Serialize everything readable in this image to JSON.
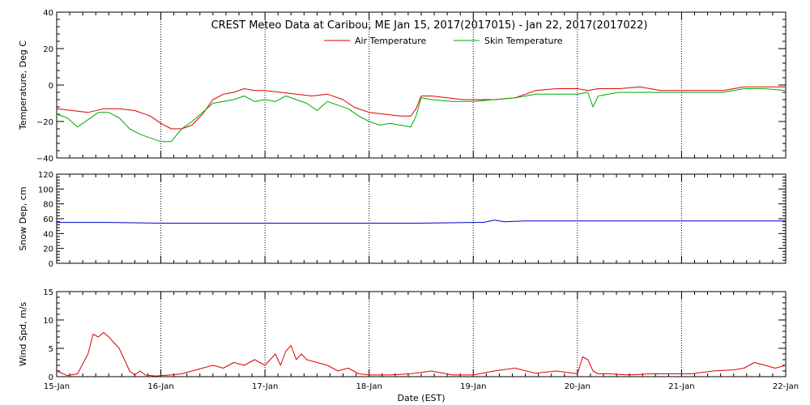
{
  "chart_data": {
    "type": "line",
    "title": "CREST Meteo Data at Caribou, ME   Jan 15, 2017(2017015) - Jan 22, 2017(2017022)",
    "xlabel": "Date (EST)",
    "x_tick_labels": [
      "15-Jan",
      "16-Jan",
      "17-Jan",
      "18-Jan",
      "19-Jan",
      "20-Jan",
      "21-Jan",
      "22-Jan"
    ],
    "xlim": [
      0,
      7
    ],
    "grid": true,
    "panels": [
      {
        "id": "temperature",
        "ylabel": "Temperature, Deg C",
        "ylim": [
          -40,
          40
        ],
        "y_tick_labels": [
          "−40",
          "−20",
          "0",
          "20",
          "40"
        ],
        "legend_position": "top-center",
        "series": [
          {
            "name": "Air Temperature",
            "color": "#dd0000",
            "x": [
              0.0,
              0.15,
              0.3,
              0.45,
              0.6,
              0.75,
              0.9,
              1.0,
              1.1,
              1.2,
              1.3,
              1.4,
              1.5,
              1.6,
              1.7,
              1.8,
              1.9,
              2.0,
              2.15,
              2.3,
              2.45,
              2.6,
              2.75,
              2.85,
              3.0,
              3.15,
              3.3,
              3.4,
              3.45,
              3.5,
              3.6,
              3.75,
              3.9,
              4.0,
              4.2,
              4.4,
              4.6,
              4.8,
              5.0,
              5.1,
              5.2,
              5.4,
              5.6,
              5.8,
              6.0,
              6.2,
              6.4,
              6.6,
              6.8,
              7.0
            ],
            "values": [
              -13,
              -14,
              -15,
              -13,
              -13,
              -14,
              -17,
              -21,
              -24,
              -24,
              -22,
              -16,
              -8,
              -5,
              -4,
              -2,
              -3,
              -3,
              -4,
              -5,
              -6,
              -5,
              -8,
              -12,
              -15,
              -16,
              -17,
              -17,
              -13,
              -6,
              -6,
              -7,
              -8,
              -8,
              -8,
              -7,
              -3,
              -2,
              -2,
              -3,
              -2,
              -2,
              -1,
              -3,
              -3,
              -3,
              -3,
              -1,
              -1,
              -1
            ]
          },
          {
            "name": "Skin Temperature",
            "color": "#00aa00",
            "x": [
              0.0,
              0.1,
              0.2,
              0.3,
              0.4,
              0.5,
              0.6,
              0.7,
              0.8,
              0.9,
              1.0,
              1.1,
              1.2,
              1.3,
              1.4,
              1.5,
              1.6,
              1.7,
              1.8,
              1.9,
              2.0,
              2.1,
              2.2,
              2.3,
              2.4,
              2.5,
              2.6,
              2.7,
              2.8,
              2.9,
              3.0,
              3.1,
              3.2,
              3.3,
              3.4,
              3.45,
              3.5,
              3.6,
              3.8,
              4.0,
              4.2,
              4.4,
              4.6,
              4.8,
              5.0,
              5.1,
              5.15,
              5.2,
              5.4,
              5.6,
              5.8,
              6.0,
              6.2,
              6.4,
              6.6,
              6.8,
              7.0
            ],
            "values": [
              -16,
              -18,
              -23,
              -19,
              -15,
              -15,
              -18,
              -24,
              -27,
              -29,
              -31,
              -31,
              -24,
              -20,
              -15,
              -10,
              -9,
              -8,
              -6,
              -9,
              -8,
              -9,
              -6,
              -8,
              -10,
              -14,
              -9,
              -11,
              -13,
              -17,
              -20,
              -22,
              -21,
              -22,
              -23,
              -17,
              -7,
              -8,
              -9,
              -9,
              -8,
              -7,
              -5,
              -5,
              -5,
              -4,
              -12,
              -6,
              -4,
              -4,
              -4,
              -4,
              -4,
              -4,
              -2,
              -2,
              -3
            ]
          }
        ]
      },
      {
        "id": "snow",
        "ylabel": "Snow Dep, cm",
        "ylim": [
          0,
          120
        ],
        "y_tick_labels": [
          "0",
          "20",
          "40",
          "60",
          "80",
          "100",
          "120"
        ],
        "series": [
          {
            "name": "",
            "color": "#0000cc",
            "x": [
              0.0,
              0.5,
              1.0,
              1.5,
              2.0,
              2.5,
              3.0,
              3.5,
              4.0,
              4.1,
              4.2,
              4.3,
              4.5,
              5.0,
              5.5,
              6.0,
              6.5,
              7.0
            ],
            "values": [
              55,
              55,
              54,
              54,
              54,
              54,
              54,
              54,
              55,
              55,
              58,
              56,
              57,
              57,
              57,
              57,
              57,
              57
            ]
          }
        ]
      },
      {
        "id": "wind",
        "ylabel": "Wind Spd, m/s",
        "ylim": [
          0,
          15
        ],
        "y_tick_labels": [
          "0",
          "5",
          "10",
          "15"
        ],
        "series": [
          {
            "name": "",
            "color": "#dd0000",
            "x": [
              0.0,
              0.1,
              0.2,
              0.3,
              0.35,
              0.4,
              0.45,
              0.5,
              0.55,
              0.6,
              0.65,
              0.7,
              0.75,
              0.8,
              0.85,
              0.9,
              0.95,
              1.0,
              1.1,
              1.2,
              1.3,
              1.4,
              1.5,
              1.6,
              1.7,
              1.8,
              1.9,
              2.0,
              2.1,
              2.15,
              2.2,
              2.25,
              2.3,
              2.35,
              2.4,
              2.5,
              2.6,
              2.7,
              2.8,
              2.9,
              3.0,
              3.2,
              3.4,
              3.6,
              3.8,
              4.0,
              4.2,
              4.4,
              4.6,
              4.8,
              5.0,
              5.05,
              5.1,
              5.15,
              5.2,
              5.3,
              5.5,
              5.7,
              5.9,
              6.1,
              6.3,
              6.5,
              6.6,
              6.7,
              6.8,
              6.9,
              7.0
            ],
            "values": [
              1,
              0.2,
              0.5,
              4,
              7.5,
              7,
              7.8,
              7,
              6,
              5,
              3,
              1,
              0.3,
              1,
              0.3,
              0.2,
              0.1,
              0.2,
              0.3,
              0.5,
              1,
              1.5,
              2,
              1.5,
              2.5,
              2,
              3,
              2,
              4,
              2,
              4.5,
              5.5,
              3,
              4,
              3,
              2.5,
              2,
              1,
              1.5,
              0.5,
              0.3,
              0.3,
              0.5,
              1,
              0.3,
              0.3,
              1,
              1.5,
              0.6,
              1,
              0.5,
              3.5,
              3,
              1,
              0.5,
              0.5,
              0.3,
              0.5,
              0.5,
              0.5,
              1,
              1.2,
              1.5,
              2.5,
              2,
              1.5,
              2
            ]
          }
        ]
      }
    ]
  }
}
